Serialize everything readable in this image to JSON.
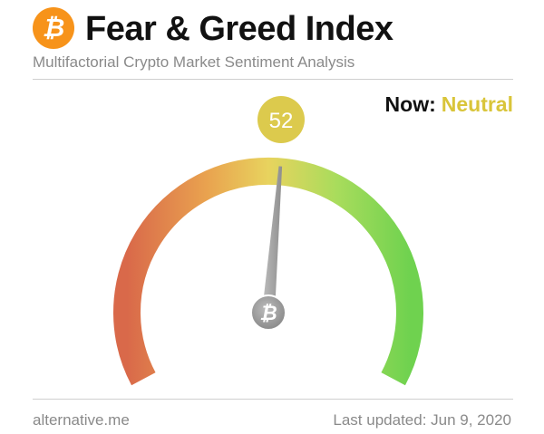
{
  "header": {
    "title": "Fear & Greed Index",
    "subtitle": "Multifactorial Crypto Market Sentiment Analysis",
    "logo_icon": "bitcoin-icon",
    "logo_color": "#f7931a"
  },
  "status": {
    "label": "Now:",
    "value": "Neutral",
    "value_color": "#d9c53a"
  },
  "chart_data": {
    "type": "gauge",
    "value": 52,
    "value_label": "52",
    "range": [
      0,
      100
    ],
    "classification": "Neutral",
    "color_stops": [
      "#d9694a",
      "#e9a24f",
      "#e8d35e",
      "#9fd85a",
      "#6fd24f"
    ],
    "needle_color": "#a9a9a9",
    "value_badge_color": "#dcca4d",
    "hub_icon": "bitcoin-icon"
  },
  "footer": {
    "source": "alternative.me",
    "updated": "Last updated: Jun 9, 2020"
  }
}
